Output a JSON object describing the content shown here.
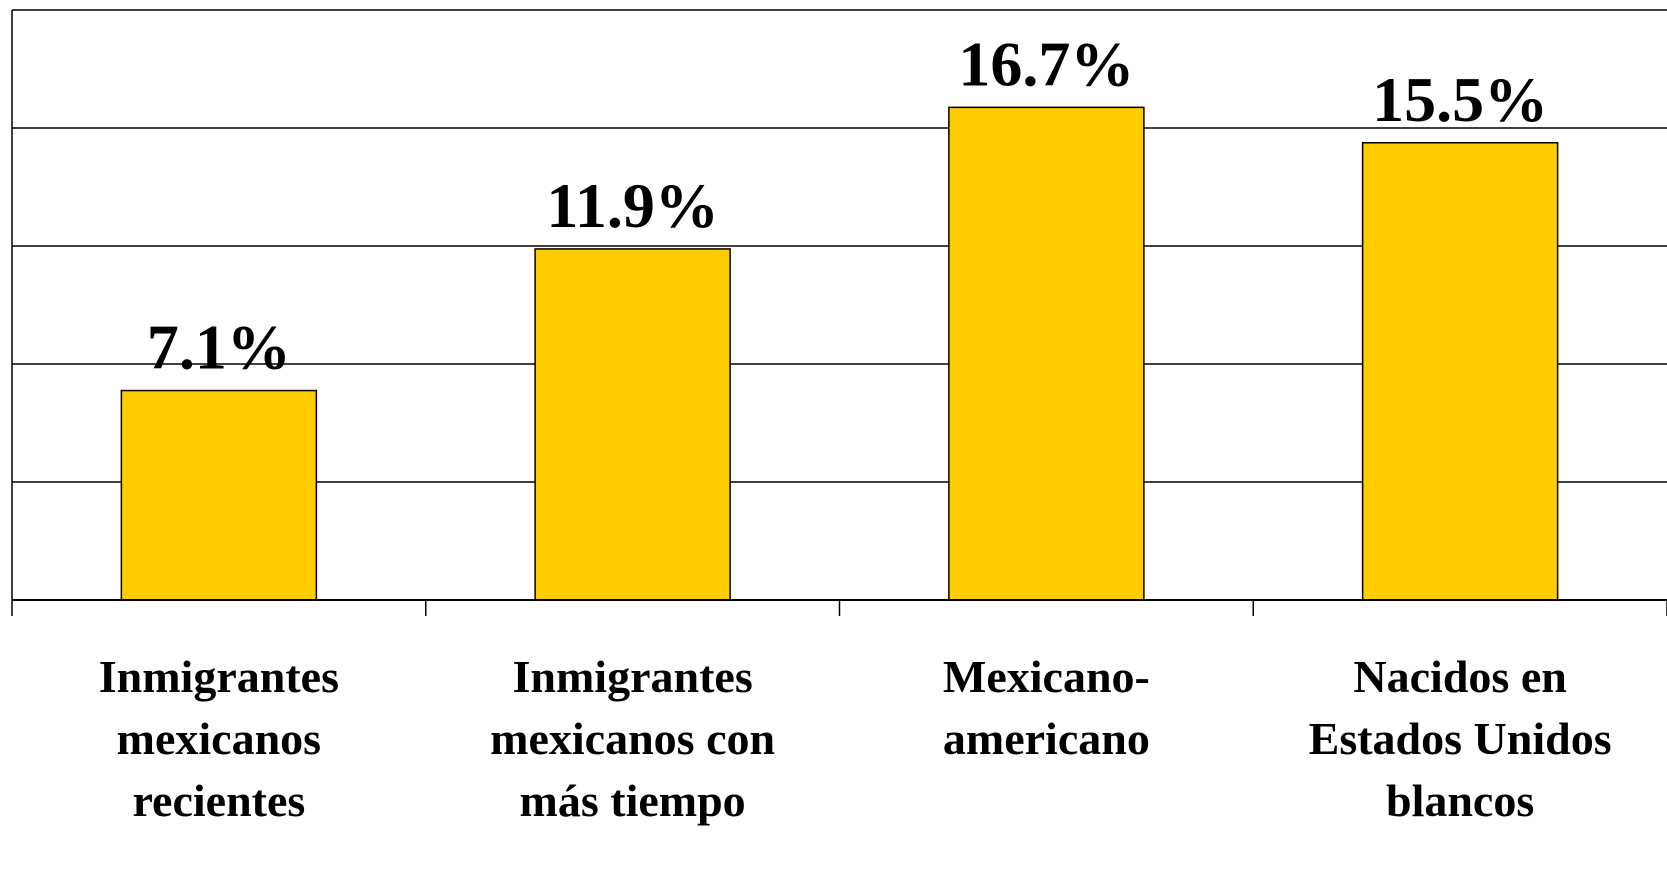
{
  "chart_data": {
    "type": "bar",
    "categories": [
      [
        "Inmigrantes",
        "mexicanos",
        "recientes"
      ],
      [
        "Inmigrantes",
        "mexicanos con",
        "más tiempo"
      ],
      [
        "Mexicano-",
        "americano"
      ],
      [
        "Nacidos en",
        "Estados Unidos",
        "blancos"
      ]
    ],
    "values": [
      7.1,
      11.9,
      16.7,
      15.5
    ],
    "data_labels": [
      "7.1%",
      "11.9%",
      "16.7%",
      "15.5%"
    ],
    "ylim": [
      0,
      20
    ],
    "grid": true,
    "bar_color": "#FFCC00",
    "title": "",
    "xlabel": "",
    "ylabel": ""
  }
}
